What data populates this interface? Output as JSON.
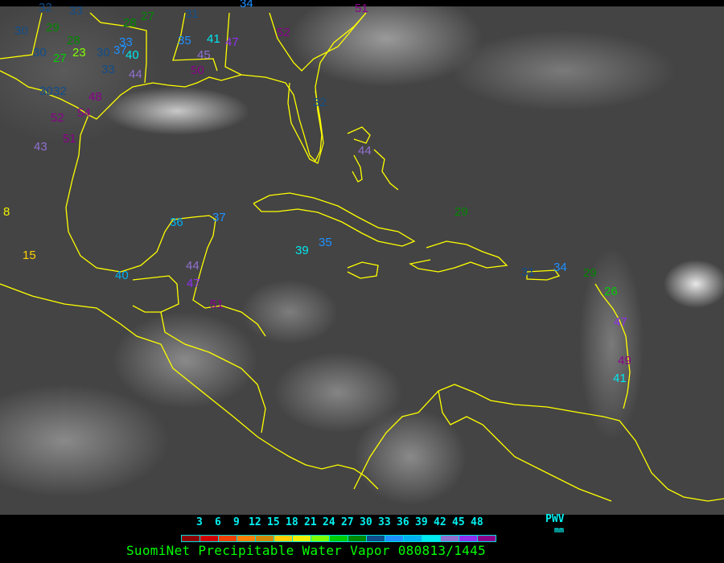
{
  "legend": {
    "ticks": [
      "3",
      "6",
      "9",
      "12",
      "15",
      "18",
      "21",
      "24",
      "27",
      "30",
      "33",
      "36",
      "39",
      "42",
      "45",
      "48"
    ],
    "colors": [
      "#8b0000",
      "#d00000",
      "#f04000",
      "#ff8000",
      "#d08800",
      "#ffd000",
      "#f0f000",
      "#80ff00",
      "#00cc00",
      "#008800",
      "#104e8b",
      "#1e90ff",
      "#00b0f0",
      "#00e8f0",
      "#9070d0",
      "#9030f0",
      "#8b008b"
    ],
    "unit_label": "PWV",
    "unit": "mm"
  },
  "title": "SuomiNet Precipitable Water Vapor 080813/1445",
  "map": {
    "land_outline_color": "#ffff00"
  },
  "stations": [
    {
      "value": "32"
    },
    {
      "value": "33"
    },
    {
      "value": "30"
    },
    {
      "value": "29"
    },
    {
      "value": "28"
    },
    {
      "value": "27"
    },
    {
      "value": "23"
    },
    {
      "value": "30"
    },
    {
      "value": "30"
    },
    {
      "value": "37"
    },
    {
      "value": "33"
    },
    {
      "value": "40"
    },
    {
      "value": "33"
    },
    {
      "value": "44"
    },
    {
      "value": "28"
    },
    {
      "value": "27"
    },
    {
      "value": "31"
    },
    {
      "value": "35"
    },
    {
      "value": "41"
    },
    {
      "value": "47"
    },
    {
      "value": "45"
    },
    {
      "value": "50"
    },
    {
      "value": "34"
    },
    {
      "value": "52"
    },
    {
      "value": "51"
    },
    {
      "value": "30"
    },
    {
      "value": "32"
    },
    {
      "value": "48"
    },
    {
      "value": "52"
    },
    {
      "value": "54"
    },
    {
      "value": "51"
    },
    {
      "value": "43"
    },
    {
      "value": "32"
    },
    {
      "value": "44"
    },
    {
      "value": "29"
    },
    {
      "value": "8"
    },
    {
      "value": "15"
    },
    {
      "value": "40"
    },
    {
      "value": "36"
    },
    {
      "value": "37"
    },
    {
      "value": "39"
    },
    {
      "value": "35"
    },
    {
      "value": "44"
    },
    {
      "value": "47"
    },
    {
      "value": "51"
    },
    {
      "value": "31"
    },
    {
      "value": "34"
    },
    {
      "value": "29"
    },
    {
      "value": "26"
    },
    {
      "value": "47"
    },
    {
      "value": "49"
    },
    {
      "value": "41"
    }
  ]
}
